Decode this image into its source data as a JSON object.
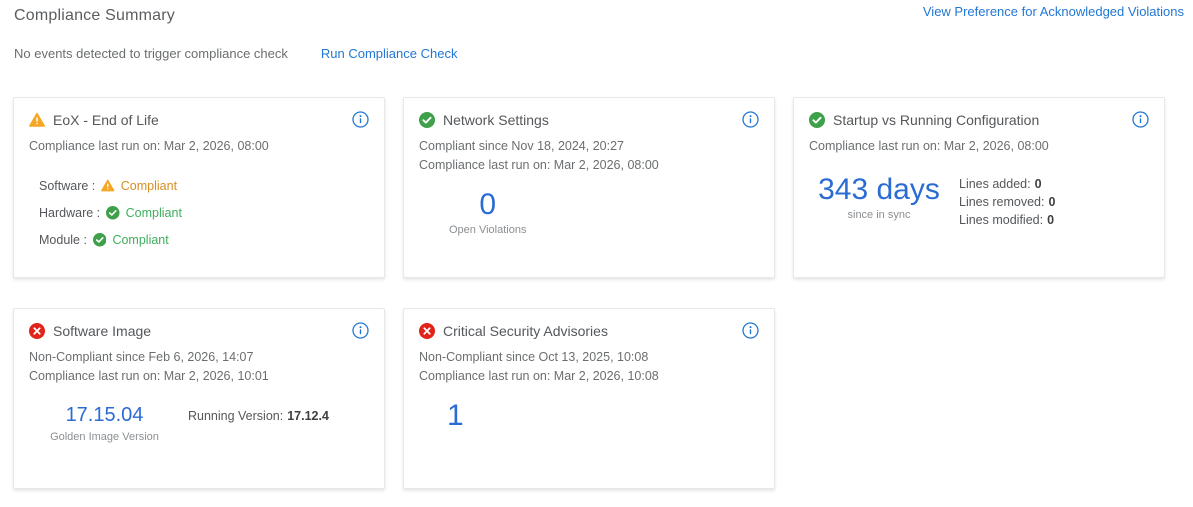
{
  "page": {
    "title": "Compliance Summary",
    "view_preference_link": "View Preference for Acknowledged Violations",
    "status_text": "No events detected to trigger compliance check",
    "run_check_link": "Run Compliance Check"
  },
  "colors": {
    "accent_blue": "#2277d4",
    "metric_blue": "#2a6bd4",
    "success_green": "#3ea14a",
    "success_text_green": "#3fae5e",
    "warning_orange": "#f5a623",
    "warning_text_orange": "#d78f20",
    "error_red": "#e2231a"
  },
  "cards": [
    {
      "id": "eox-end-of-life",
      "title": "EoX - End of Life",
      "status": "warning",
      "meta": [
        "Compliance last run on: Mar 2, 2026, 08:00"
      ],
      "statuses": [
        {
          "label": "Software :",
          "state": "warning",
          "value": "Compliant"
        },
        {
          "label": "Hardware :",
          "state": "success",
          "value": "Compliant"
        },
        {
          "label": "Module :",
          "state": "success",
          "value": "Compliant"
        }
      ]
    },
    {
      "id": "network-settings",
      "title": "Network Settings",
      "status": "success",
      "meta": [
        "Compliant since Nov 18, 2024, 20:27",
        "Compliance last run on: Mar 2, 2026, 08:00"
      ],
      "metric": {
        "value": "0",
        "caption": "Open Violations"
      }
    },
    {
      "id": "startup-vs-running-configuration",
      "title": "Startup vs Running Configuration",
      "status": "success",
      "meta": [
        "Compliance last run on: Mar 2, 2026, 08:00"
      ],
      "metric": {
        "value": "343 days",
        "caption": "since in sync"
      },
      "details": [
        {
          "label": "Lines added:",
          "value": "0"
        },
        {
          "label": "Lines removed:",
          "value": "0"
        },
        {
          "label": "Lines modified:",
          "value": "0"
        }
      ]
    },
    {
      "id": "software-image",
      "title": "Software Image",
      "status": "error",
      "meta": [
        "Non-Compliant since Feb 6, 2026, 14:07",
        "Compliance last run on: Mar 2, 2026, 10:01"
      ],
      "metric": {
        "value": "17.15.04",
        "caption": "Golden Image Version"
      },
      "details": [
        {
          "label": "Running Version:",
          "value": "17.12.4"
        }
      ]
    },
    {
      "id": "critical-security-advisories",
      "title": "Critical Security Advisories",
      "status": "error",
      "meta": [
        "Non-Compliant since Oct 13, 2025, 10:08",
        "Compliance last run on: Mar 2, 2026, 10:08"
      ],
      "metric": {
        "value": "1",
        "caption": ""
      }
    }
  ]
}
